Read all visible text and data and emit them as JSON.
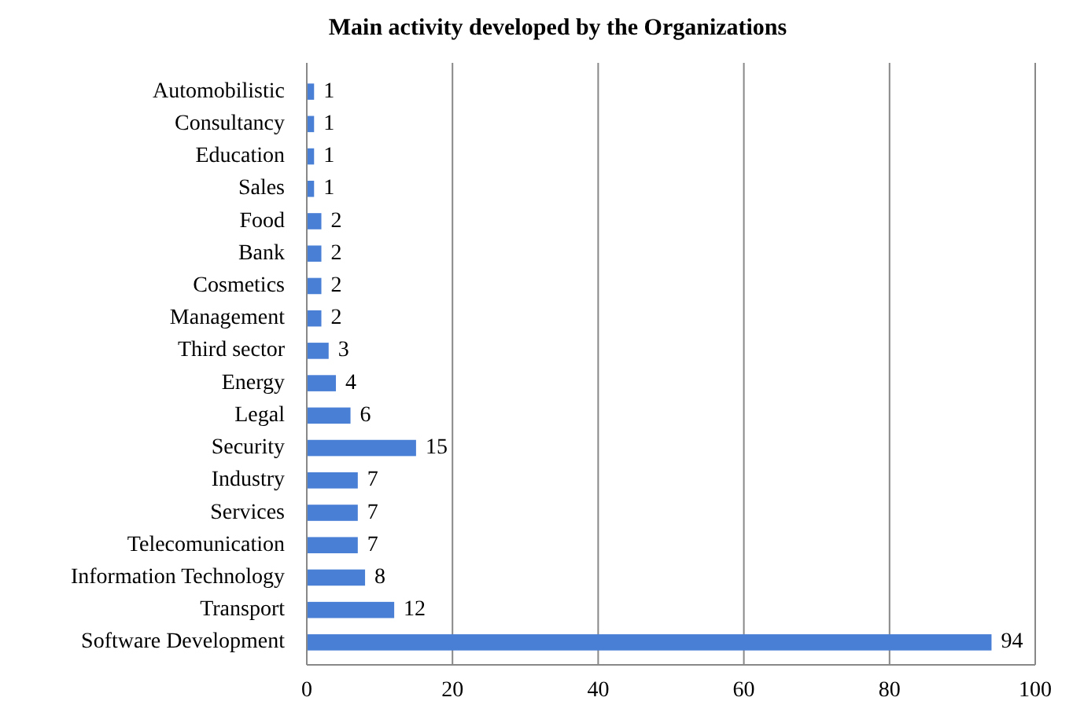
{
  "chart_data": {
    "type": "bar",
    "orientation": "horizontal",
    "title": "Main activity developed by the Organizations",
    "categories": [
      "Automobilistic",
      "Consultancy",
      "Education",
      "Sales",
      "Food",
      "Bank",
      "Cosmetics",
      "Management",
      "Third sector",
      "Energy",
      "Legal",
      "Security",
      "Industry",
      "Services",
      "Telecomunication",
      "Information Technology",
      "Transport",
      "Software Development"
    ],
    "values": [
      1,
      1,
      1,
      1,
      2,
      2,
      2,
      2,
      3,
      4,
      6,
      15,
      7,
      7,
      7,
      8,
      12,
      94
    ],
    "color": "#4a7fd6",
    "xlim": [
      0,
      100
    ],
    "xticks": [
      0,
      20,
      40,
      60,
      80,
      100
    ],
    "grid": "x",
    "data_labels": true
  }
}
